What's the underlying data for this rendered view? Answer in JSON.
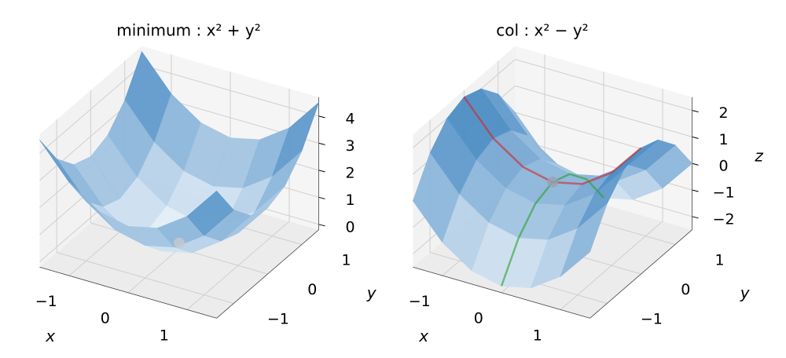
{
  "chart_data": [
    {
      "type": "surface3d",
      "title": "minimum : x² + y²",
      "x_label": "x",
      "y_label": "y",
      "x": [
        -1.5,
        -1,
        -0.5,
        0,
        0.5,
        1,
        1.5
      ],
      "y": [
        -1.5,
        -1,
        -0.5,
        0,
        0.5,
        1,
        1.5
      ],
      "z": [
        [
          4.5,
          3.25,
          2.5,
          2.25,
          2.5,
          3.25,
          4.5
        ],
        [
          3.25,
          2,
          1.25,
          1,
          1.25,
          2,
          3.25
        ],
        [
          2.5,
          1.25,
          0.5,
          0.25,
          0.5,
          1.25,
          2.5
        ],
        [
          2.25,
          1,
          0.25,
          0,
          0.25,
          1,
          2.25
        ],
        [
          2.5,
          1.25,
          0.5,
          0.25,
          0.5,
          1.25,
          2.5
        ],
        [
          3.25,
          2,
          1.25,
          1,
          1.25,
          2,
          3.25
        ],
        [
          4.5,
          3.25,
          2.5,
          2.25,
          2.5,
          3.25,
          4.5
        ]
      ],
      "colormap": [
        "#f7fbff",
        "#2171b5"
      ],
      "xlim": [
        -1.5,
        1.5
      ],
      "ylim": [
        -1.5,
        1.5
      ],
      "zlim": [
        -0.2,
        4.7
      ],
      "xticks": [
        {
          "value": -1,
          "label": "−1"
        },
        0,
        1
      ],
      "yticks": [
        {
          "value": -1,
          "label": "−1"
        },
        0,
        1
      ],
      "zticks": [
        0,
        1,
        2,
        3,
        4
      ],
      "points": [
        {
          "x": 0,
          "y": 0,
          "z": 0,
          "color": "#c8c8d0"
        }
      ],
      "curves": []
    },
    {
      "type": "surface3d",
      "title": "col : x² − y²",
      "x_label": "x",
      "y_label": "y",
      "z_label": "z",
      "x": [
        -1.5,
        -1,
        -0.5,
        0,
        0.5,
        1,
        1.5
      ],
      "y": [
        -1.5,
        -1,
        -0.5,
        0,
        0.5,
        1,
        1.5
      ],
      "z": [
        [
          0,
          -1.25,
          -2,
          -2.25,
          -2,
          -1.25,
          0
        ],
        [
          1.25,
          0,
          -0.75,
          -1,
          -0.75,
          0,
          1.25
        ],
        [
          2,
          0.75,
          0,
          -0.25,
          0,
          0.75,
          2
        ],
        [
          2.25,
          1,
          0.25,
          0,
          0.25,
          1,
          2.25
        ],
        [
          2,
          0.75,
          0,
          -0.25,
          0,
          0.75,
          2
        ],
        [
          1.25,
          0,
          -0.75,
          -1,
          -0.75,
          0,
          1.25
        ],
        [
          0,
          -1.25,
          -2,
          -2.25,
          -2,
          -1.25,
          0
        ]
      ],
      "colormap": [
        "#f7fbff",
        "#2171b5"
      ],
      "xlim": [
        -1.5,
        1.5
      ],
      "ylim": [
        -1.5,
        1.5
      ],
      "zlim": [
        -2.5,
        2.5
      ],
      "xticks": [
        {
          "value": -1,
          "label": "−1"
        },
        0,
        1
      ],
      "yticks": [
        {
          "value": -1,
          "label": "−1"
        },
        0,
        1
      ],
      "zticks": [
        {
          "value": -2,
          "label": "−2"
        },
        {
          "value": -1,
          "label": "−1"
        },
        0,
        1,
        2
      ],
      "points": [
        {
          "x": 0,
          "y": 0,
          "z": 0,
          "color": "#9aa0b8"
        }
      ],
      "curves": [
        {
          "color": "#d62728",
          "x": [
            -1.5,
            -1,
            -0.5,
            0,
            0.5,
            1,
            1.5
          ],
          "y": [
            0,
            0,
            0,
            0,
            0,
            0,
            0
          ],
          "z": [
            2.25,
            1,
            0.25,
            0,
            0.25,
            1,
            2.25
          ]
        },
        {
          "color": "#2ca02c",
          "x": [
            0,
            0,
            0,
            0,
            0,
            0,
            0
          ],
          "y": [
            -1.5,
            -1,
            -0.5,
            0,
            0.5,
            1,
            1.5
          ],
          "z": [
            -2.25,
            -1,
            -0.25,
            0,
            -0.25,
            -1,
            -2.25
          ]
        }
      ]
    }
  ]
}
